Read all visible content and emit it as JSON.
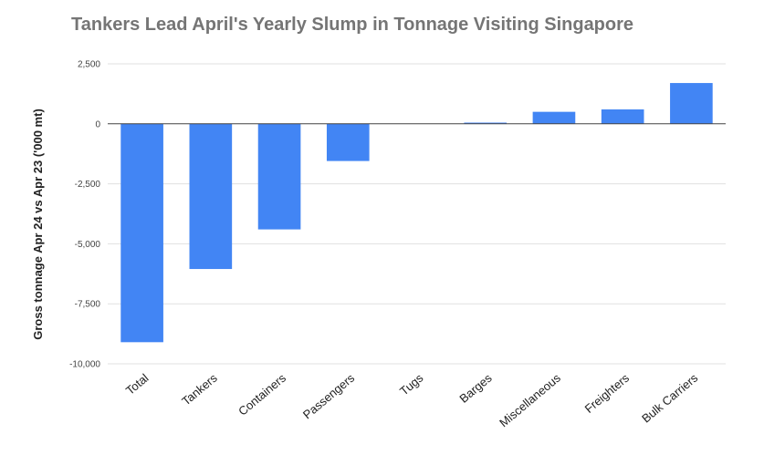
{
  "chart_data": {
    "type": "bar",
    "title": "Tankers Lead April's Yearly Slump in Tonnage Visiting Singapore",
    "xlabel": "",
    "ylabel": "Gross tonnage Apr 24 vs Apr 23 ('000 mt)",
    "categories": [
      "Total",
      "Tankers",
      "Containers",
      "Passengers",
      "Tugs",
      "Barges",
      "Miscellaneous",
      "Freighters",
      "Bulk Carriers"
    ],
    "values": [
      -9100,
      -6050,
      -4400,
      -1550,
      0,
      50,
      500,
      600,
      1700
    ],
    "ylim": [
      -10000,
      2500
    ],
    "yticks": [
      2500,
      0,
      -2500,
      -5000,
      -7500,
      -10000
    ],
    "ytick_labels": [
      "2,500",
      "0",
      "-2,500",
      "-5,000",
      "-7,500",
      "-10,000"
    ],
    "grid": true,
    "legend": "none",
    "bar_color": "#4285f4"
  }
}
